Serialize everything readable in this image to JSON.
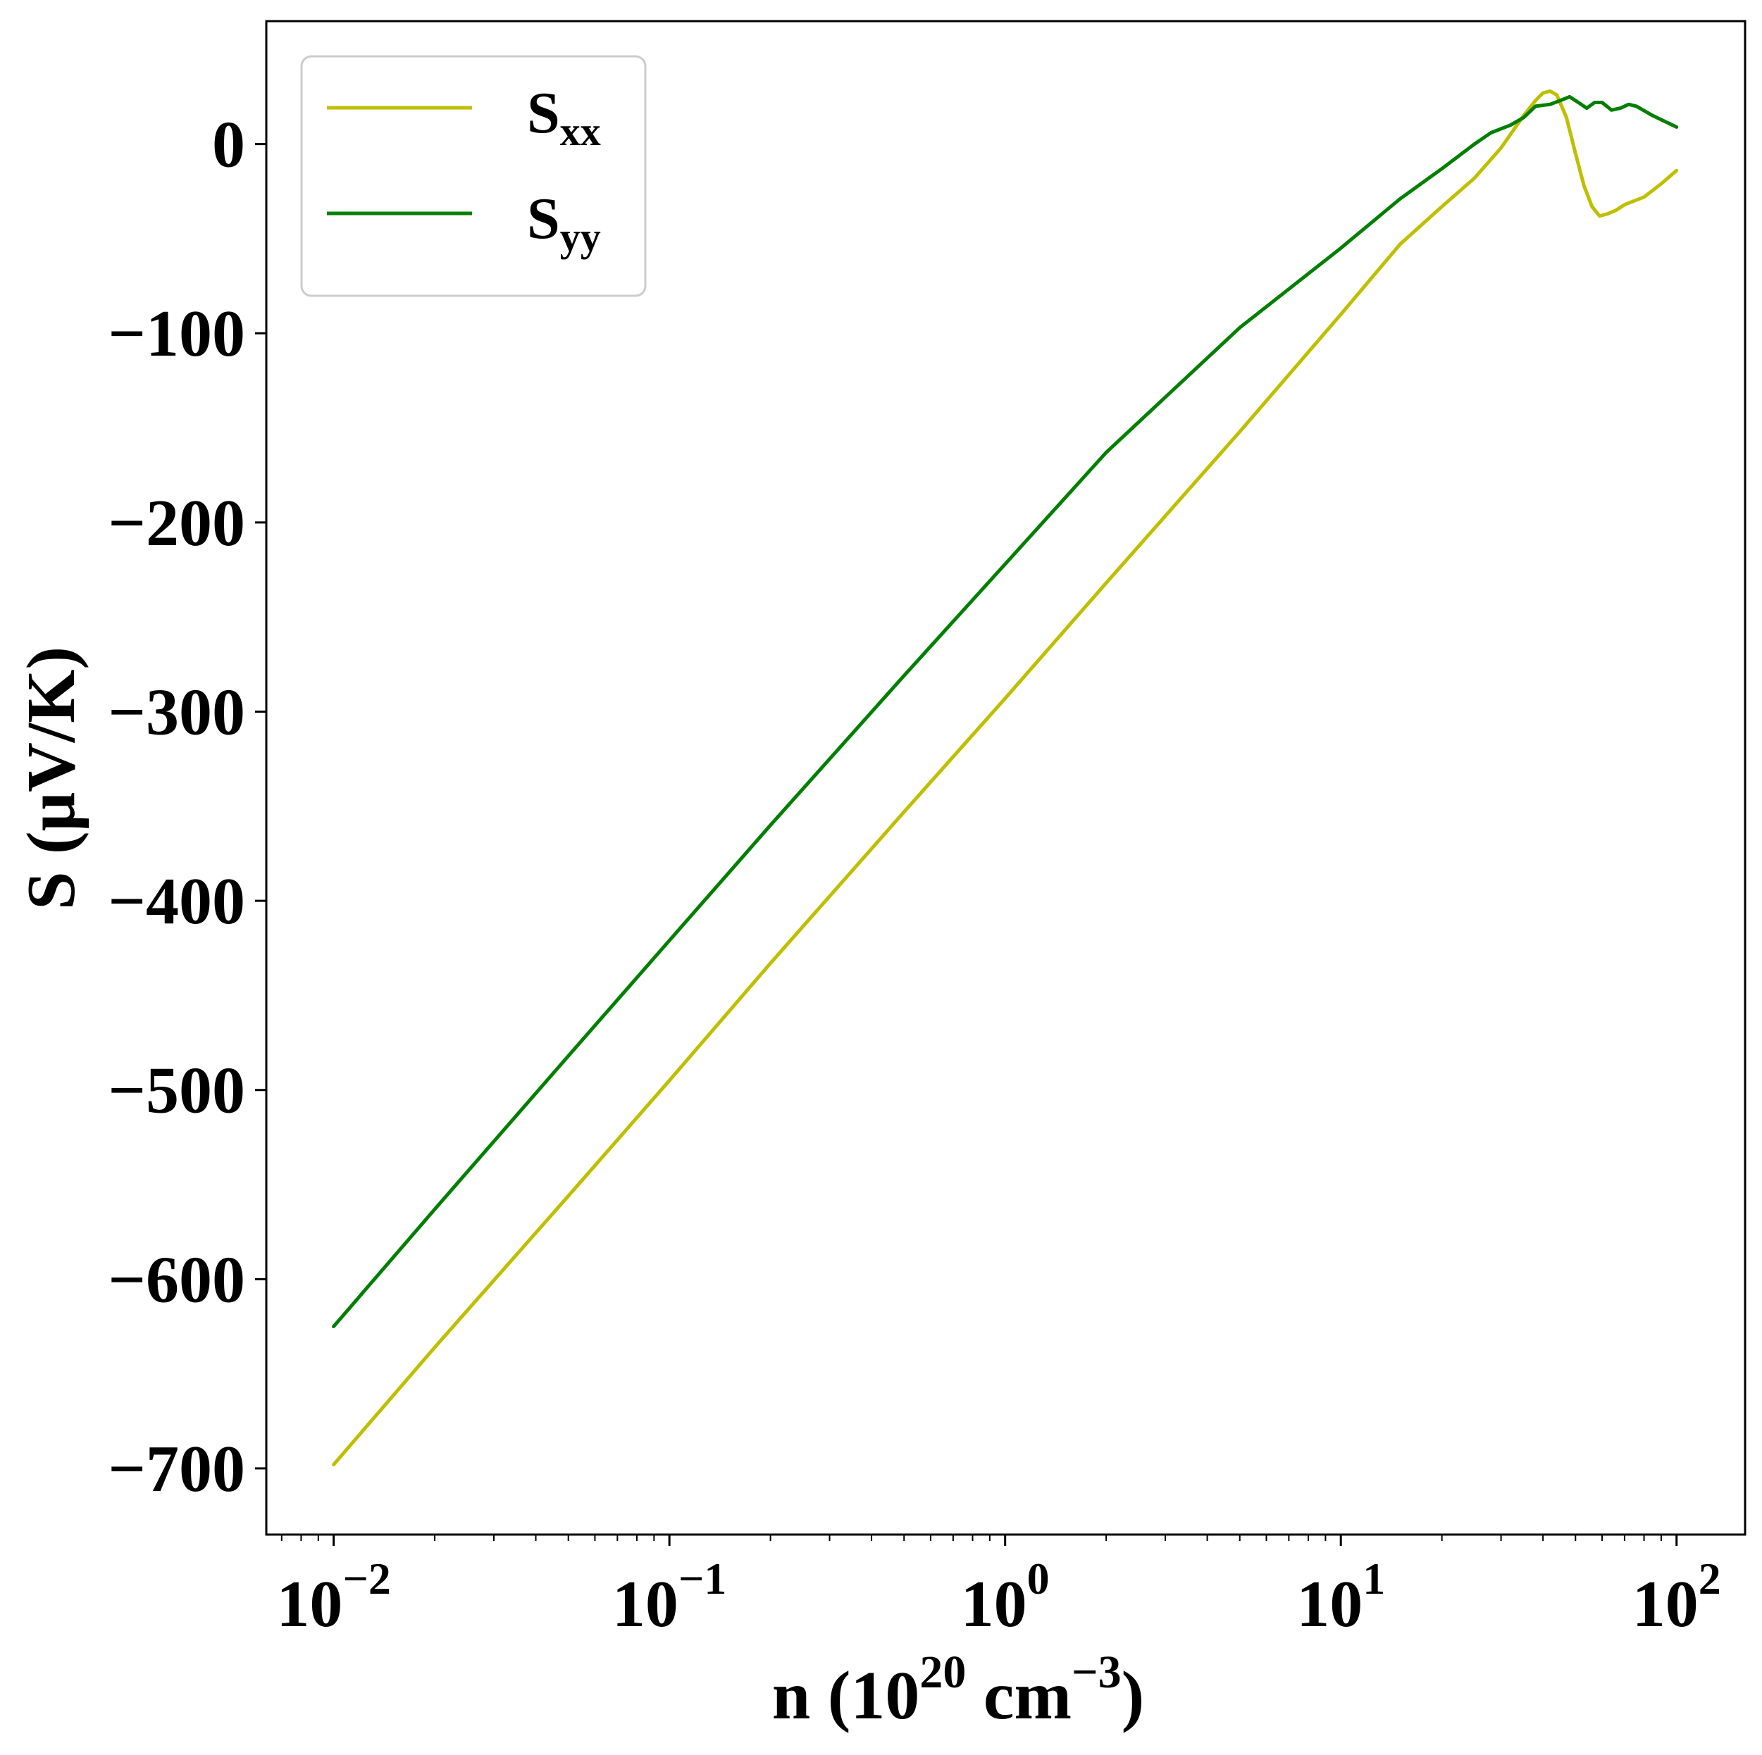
{
  "chart_data": {
    "type": "line",
    "xscale": "log",
    "xlim": [
      0.0063,
      160
    ],
    "ylim": [
      -735,
      65
    ],
    "x_ticks": [
      {
        "base": "10",
        "exp": "−2",
        "value": 0.01
      },
      {
        "base": "10",
        "exp": "−1",
        "value": 0.1
      },
      {
        "base": "10",
        "exp": "0",
        "value": 1
      },
      {
        "base": "10",
        "exp": "1",
        "value": 10
      },
      {
        "base": "10",
        "exp": "2",
        "value": 100
      }
    ],
    "y_ticks": [
      {
        "label": "0",
        "value": 0
      },
      {
        "label": "−100",
        "value": -100
      },
      {
        "label": "−200",
        "value": -200
      },
      {
        "label": "−300",
        "value": -300
      },
      {
        "label": "−400",
        "value": -400
      },
      {
        "label": "−500",
        "value": -500
      },
      {
        "label": "−600",
        "value": -600
      },
      {
        "label": "−700",
        "value": -700
      }
    ],
    "xlabel": {
      "prefix": "n (10",
      "sup1": "20",
      "mid": " cm",
      "sup2": "−3",
      "suffix": ")"
    },
    "ylabel": "S (μV/K)",
    "grid": false,
    "legend_position": "top-left",
    "series": [
      {
        "name": "S",
        "sub": "xx",
        "color": "#bfbf00",
        "points": [
          [
            0.01,
            -698
          ],
          [
            0.02,
            -636
          ],
          [
            0.05,
            -556
          ],
          [
            0.1,
            -495
          ],
          [
            0.2,
            -433
          ],
          [
            0.5,
            -353
          ],
          [
            1,
            -293
          ],
          [
            2,
            -232
          ],
          [
            5,
            -152
          ],
          [
            10,
            -90
          ],
          [
            15,
            -53
          ],
          [
            20,
            -33
          ],
          [
            25,
            -18
          ],
          [
            30,
            -2
          ],
          [
            35,
            15
          ],
          [
            38,
            23
          ],
          [
            40,
            27
          ],
          [
            42,
            28
          ],
          [
            44,
            26
          ],
          [
            47,
            14
          ],
          [
            50,
            -5
          ],
          [
            53,
            -22
          ],
          [
            56,
            -33
          ],
          [
            59,
            -38
          ],
          [
            62,
            -37
          ],
          [
            66,
            -35
          ],
          [
            70,
            -32
          ],
          [
            80,
            -28
          ],
          [
            90,
            -21
          ],
          [
            100,
            -14
          ]
        ]
      },
      {
        "name": "S",
        "sub": "yy",
        "color": "#007f00",
        "points": [
          [
            0.01,
            -625
          ],
          [
            0.02,
            -563
          ],
          [
            0.05,
            -482
          ],
          [
            0.1,
            -421
          ],
          [
            0.2,
            -360
          ],
          [
            0.5,
            -281
          ],
          [
            1,
            -222
          ],
          [
            2,
            -163
          ],
          [
            5,
            -97
          ],
          [
            10,
            -55
          ],
          [
            15,
            -29
          ],
          [
            20,
            -13
          ],
          [
            25,
            0
          ],
          [
            28,
            6
          ],
          [
            32,
            10
          ],
          [
            35,
            14
          ],
          [
            38,
            20
          ],
          [
            42,
            21
          ],
          [
            45,
            23
          ],
          [
            48,
            25
          ],
          [
            51,
            22
          ],
          [
            54,
            19
          ],
          [
            57,
            22
          ],
          [
            60,
            22
          ],
          [
            64,
            18
          ],
          [
            68,
            19
          ],
          [
            72,
            21
          ],
          [
            76,
            20
          ],
          [
            85,
            15
          ],
          [
            100,
            9
          ]
        ]
      }
    ]
  }
}
